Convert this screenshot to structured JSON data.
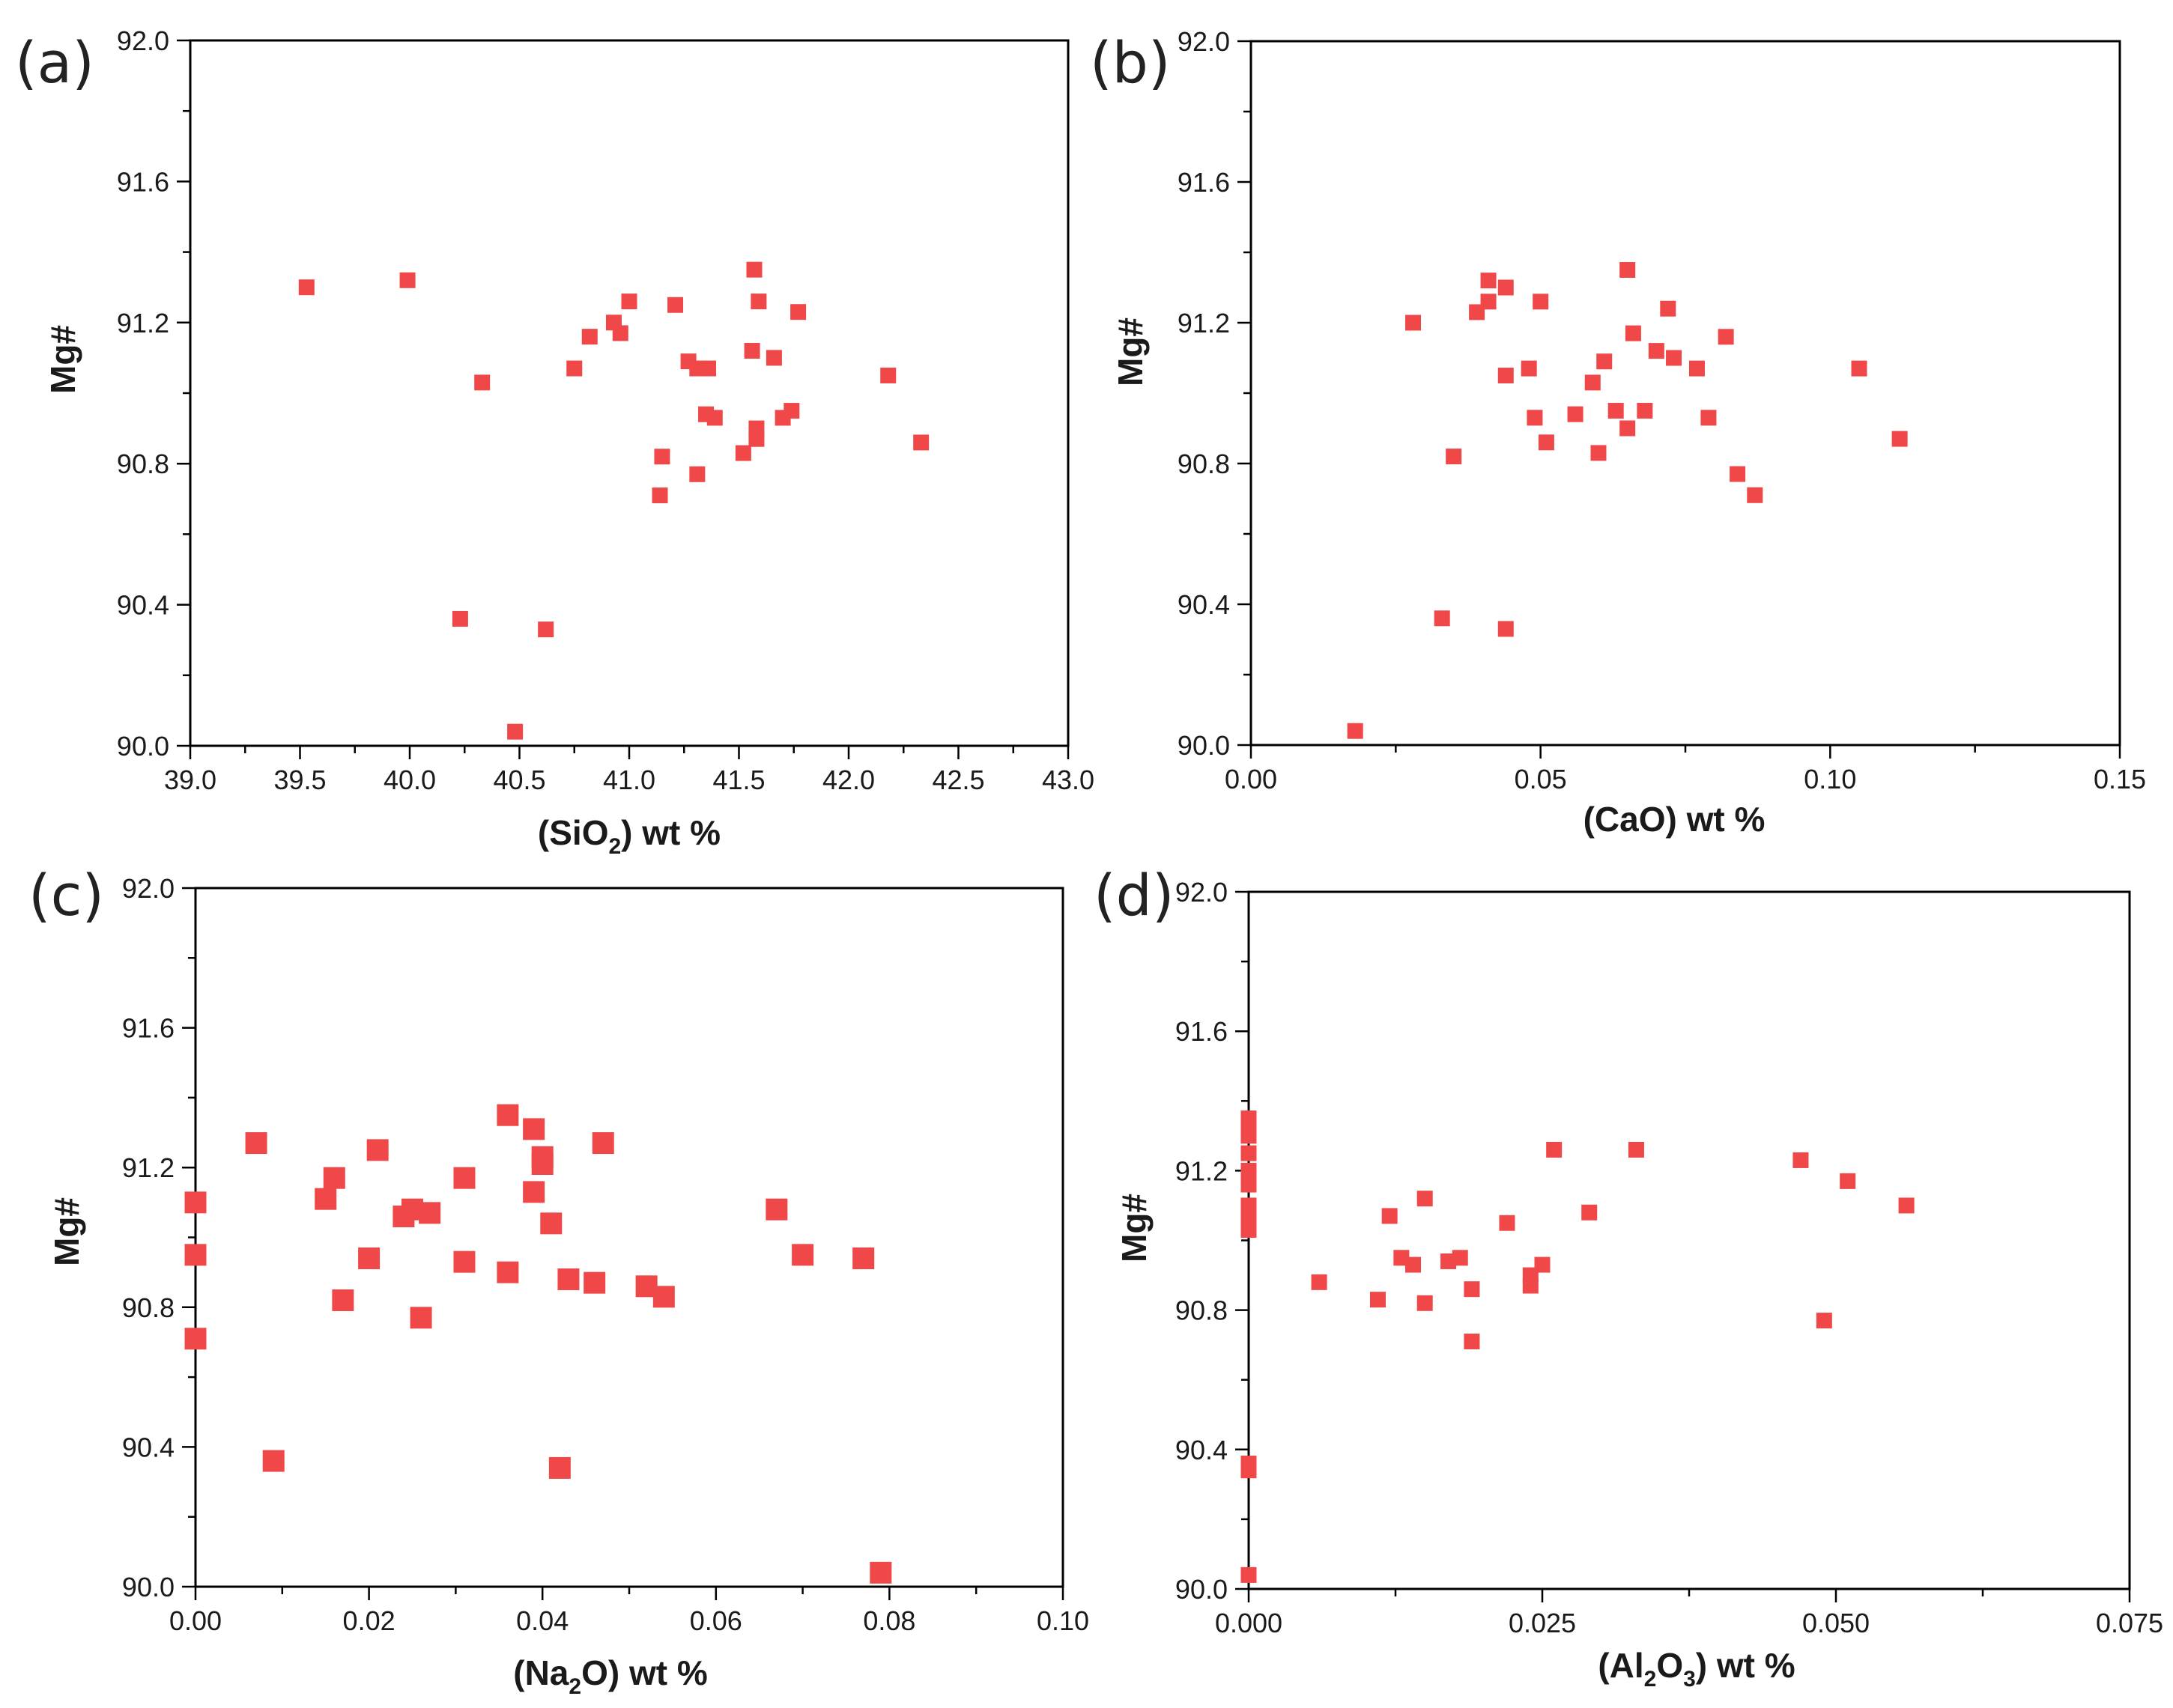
{
  "figure": {
    "marker_color": "#f04848",
    "panels": [
      "a",
      "b",
      "c",
      "d"
    ]
  },
  "chart_data": [
    {
      "id": "a",
      "type": "scatter",
      "panel_label": "(a)",
      "xlabel_prefix": "(SiO",
      "xlabel_sub": "2",
      "xlabel_suffix": ") wt %",
      "ylabel": "Mg#",
      "xlim": [
        39.0,
        43.0
      ],
      "ylim": [
        90.0,
        92.0
      ],
      "xticks": [
        "39.0",
        "39.5",
        "40.0",
        "40.5",
        "41.0",
        "41.5",
        "42.0",
        "42.5",
        "43.0"
      ],
      "yticks": [
        "90.0",
        "90.4",
        "90.8",
        "91.2",
        "91.6",
        "92.0"
      ],
      "marker_size": "small",
      "points": [
        [
          39.53,
          91.3
        ],
        [
          39.99,
          91.32
        ],
        [
          40.33,
          91.03
        ],
        [
          40.23,
          90.36
        ],
        [
          40.48,
          90.04
        ],
        [
          40.62,
          90.33
        ],
        [
          40.75,
          91.07
        ],
        [
          40.82,
          91.16
        ],
        [
          40.93,
          91.2
        ],
        [
          40.96,
          91.17
        ],
        [
          41.0,
          91.26
        ],
        [
          41.15,
          90.82
        ],
        [
          41.14,
          90.71
        ],
        [
          41.21,
          91.25
        ],
        [
          41.27,
          91.09
        ],
        [
          41.31,
          91.07
        ],
        [
          41.36,
          91.07
        ],
        [
          41.35,
          90.94
        ],
        [
          41.39,
          90.93
        ],
        [
          41.31,
          90.77
        ],
        [
          41.52,
          90.83
        ],
        [
          41.57,
          91.35
        ],
        [
          41.59,
          91.26
        ],
        [
          41.56,
          91.12
        ],
        [
          41.58,
          90.9
        ],
        [
          41.58,
          90.87
        ],
        [
          41.66,
          91.1
        ],
        [
          41.7,
          90.93
        ],
        [
          41.74,
          90.95
        ],
        [
          41.77,
          91.23
        ],
        [
          42.18,
          91.05
        ],
        [
          42.33,
          90.86
        ]
      ]
    },
    {
      "id": "b",
      "type": "scatter",
      "panel_label": "(b)",
      "xlabel_prefix": "(CaO) wt %",
      "xlabel_sub": "",
      "xlabel_suffix": "",
      "ylabel": "Mg#",
      "xlim": [
        0.0,
        0.15
      ],
      "ylim": [
        90.0,
        92.0
      ],
      "xticks": [
        "0.00",
        "0.05",
        "0.10",
        "0.15"
      ],
      "yticks": [
        "90.0",
        "90.4",
        "90.8",
        "91.2",
        "91.6",
        "92.0"
      ],
      "marker_size": "small",
      "points": [
        [
          0.018,
          90.04
        ],
        [
          0.028,
          91.2
        ],
        [
          0.033,
          90.36
        ],
        [
          0.035,
          90.82
        ],
        [
          0.039,
          91.23
        ],
        [
          0.041,
          91.26
        ],
        [
          0.041,
          91.32
        ],
        [
          0.044,
          91.3
        ],
        [
          0.044,
          91.05
        ],
        [
          0.044,
          90.33
        ],
        [
          0.048,
          91.07
        ],
        [
          0.049,
          90.93
        ],
        [
          0.05,
          91.26
        ],
        [
          0.051,
          90.86
        ],
        [
          0.056,
          90.94
        ],
        [
          0.059,
          91.03
        ],
        [
          0.06,
          90.83
        ],
        [
          0.061,
          91.09
        ],
        [
          0.063,
          90.95
        ],
        [
          0.065,
          91.35
        ],
        [
          0.066,
          91.17
        ],
        [
          0.065,
          90.9
        ],
        [
          0.068,
          90.95
        ],
        [
          0.07,
          91.12
        ],
        [
          0.072,
          91.24
        ],
        [
          0.073,
          91.1
        ],
        [
          0.077,
          91.07
        ],
        [
          0.079,
          90.93
        ],
        [
          0.082,
          91.16
        ],
        [
          0.084,
          90.77
        ],
        [
          0.087,
          90.71
        ],
        [
          0.105,
          91.07
        ],
        [
          0.112,
          90.87
        ]
      ]
    },
    {
      "id": "c",
      "type": "scatter",
      "panel_label": "(c)",
      "xlabel_prefix": "(Na",
      "xlabel_sub": "2",
      "xlabel_suffix": "O) wt %",
      "ylabel": "Mg#",
      "xlim": [
        0.0,
        0.1
      ],
      "ylim": [
        90.0,
        92.0
      ],
      "xticks": [
        "0.00",
        "0.02",
        "0.04",
        "0.06",
        "0.08",
        "0.10"
      ],
      "yticks": [
        "90.0",
        "90.4",
        "90.8",
        "91.2",
        "91.6",
        "92.0"
      ],
      "marker_size": "large",
      "points": [
        [
          0.0,
          91.1
        ],
        [
          0.0,
          90.95
        ],
        [
          0.0,
          90.71
        ],
        [
          0.007,
          91.27
        ],
        [
          0.009,
          90.36
        ],
        [
          0.015,
          91.11
        ],
        [
          0.016,
          91.17
        ],
        [
          0.017,
          90.82
        ],
        [
          0.02,
          90.94
        ],
        [
          0.021,
          91.25
        ],
        [
          0.024,
          91.06
        ],
        [
          0.025,
          91.08
        ],
        [
          0.026,
          90.77
        ],
        [
          0.027,
          91.07
        ],
        [
          0.031,
          91.17
        ],
        [
          0.031,
          90.93
        ],
        [
          0.036,
          91.35
        ],
        [
          0.036,
          90.9
        ],
        [
          0.039,
          91.31
        ],
        [
          0.039,
          91.13
        ],
        [
          0.04,
          91.23
        ],
        [
          0.04,
          91.21
        ],
        [
          0.041,
          91.04
        ],
        [
          0.042,
          90.34
        ],
        [
          0.043,
          90.88
        ],
        [
          0.046,
          90.87
        ],
        [
          0.047,
          91.27
        ],
        [
          0.052,
          90.86
        ],
        [
          0.054,
          90.83
        ],
        [
          0.067,
          91.08
        ],
        [
          0.07,
          90.95
        ],
        [
          0.077,
          90.94
        ],
        [
          0.079,
          90.04
        ]
      ]
    },
    {
      "id": "d",
      "type": "scatter",
      "panel_label": "(d)",
      "xlabel_prefix": "(Al",
      "xlabel_sub": "2",
      "xlabel_mid": "O",
      "xlabel_sub2": "3",
      "xlabel_suffix": ") wt %",
      "ylabel": "Mg#",
      "xlim": [
        0.0,
        0.075
      ],
      "ylim": [
        90.0,
        92.0
      ],
      "xticks": [
        "0.000",
        "0.025",
        "0.050",
        "0.075"
      ],
      "yticks": [
        "90.0",
        "90.4",
        "90.8",
        "91.2",
        "91.6",
        "92.0"
      ],
      "marker_size": "small",
      "points": [
        [
          0.0,
          91.35
        ],
        [
          0.0,
          91.32
        ],
        [
          0.0,
          91.3
        ],
        [
          0.0,
          91.25
        ],
        [
          0.0,
          91.2
        ],
        [
          0.0,
          91.16
        ],
        [
          0.0,
          91.1
        ],
        [
          0.0,
          91.07
        ],
        [
          0.0,
          91.05
        ],
        [
          0.0,
          91.03
        ],
        [
          0.0,
          90.36
        ],
        [
          0.0,
          90.34
        ],
        [
          0.0,
          90.04
        ],
        [
          0.006,
          90.88
        ],
        [
          0.011,
          90.83
        ],
        [
          0.012,
          91.07
        ],
        [
          0.013,
          90.95
        ],
        [
          0.014,
          90.93
        ],
        [
          0.015,
          91.12
        ],
        [
          0.015,
          90.82
        ],
        [
          0.017,
          90.94
        ],
        [
          0.018,
          90.95
        ],
        [
          0.019,
          90.86
        ],
        [
          0.019,
          90.71
        ],
        [
          0.022,
          91.05
        ],
        [
          0.024,
          90.9
        ],
        [
          0.024,
          90.87
        ],
        [
          0.025,
          90.93
        ],
        [
          0.026,
          91.26
        ],
        [
          0.029,
          91.08
        ],
        [
          0.033,
          91.26
        ],
        [
          0.047,
          91.23
        ],
        [
          0.049,
          90.77
        ],
        [
          0.051,
          91.17
        ],
        [
          0.056,
          91.1
        ]
      ]
    }
  ]
}
